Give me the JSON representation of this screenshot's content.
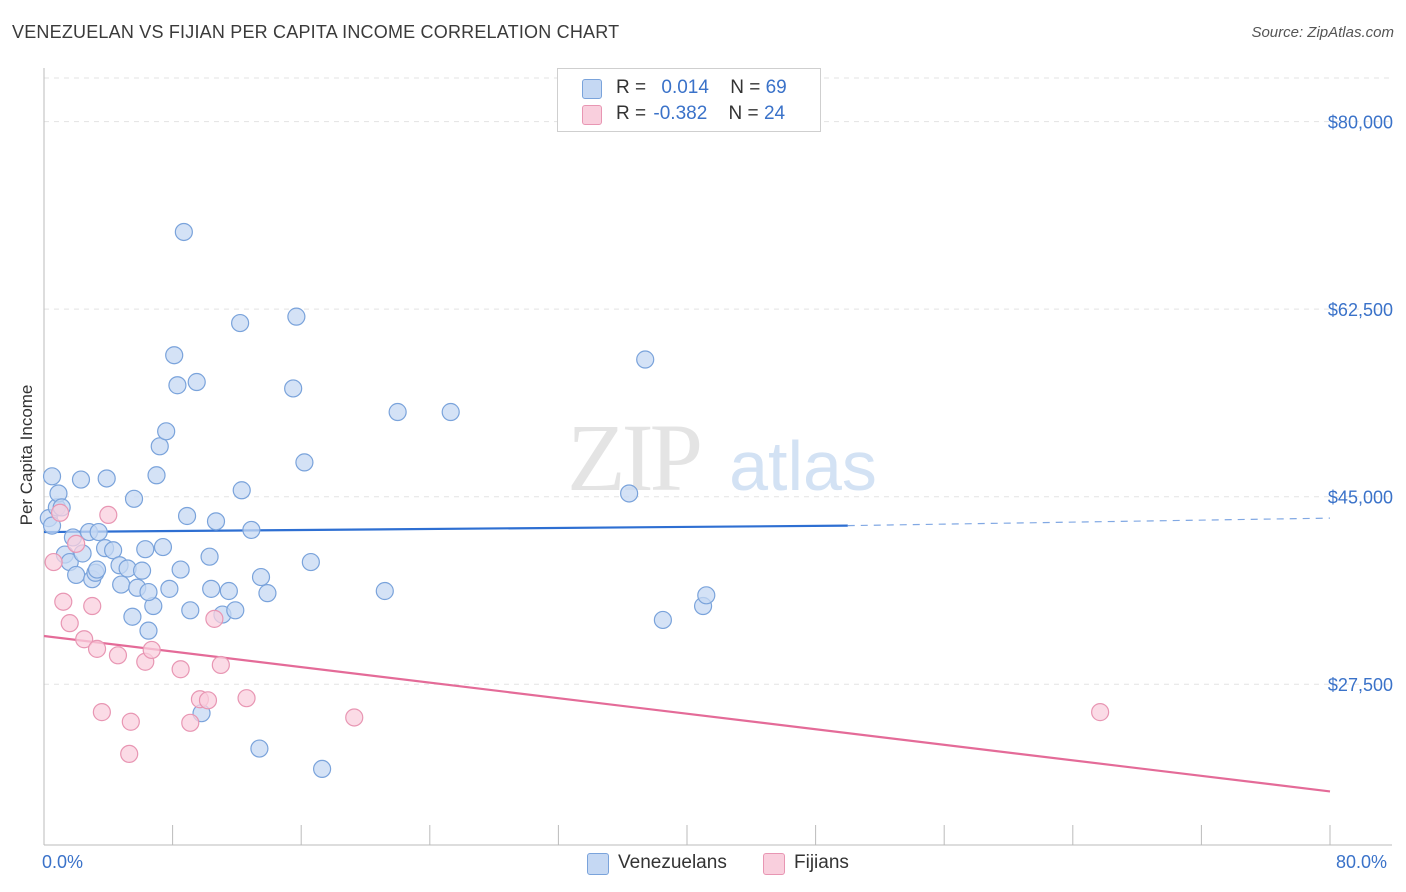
{
  "title": "VENEZUELAN VS FIJIAN PER CAPITA INCOME CORRELATION CHART",
  "source": "Source: ZipAtlas.com",
  "watermark": {
    "zip": "ZIP",
    "atlas": "atlas"
  },
  "legend": {
    "r_label": "R =",
    "n_label": "N =",
    "venezuelans": {
      "r": "0.014",
      "n": "69"
    },
    "fijians": {
      "r": "-0.382",
      "n": "24"
    }
  },
  "x_axis": {
    "min_label": "0.0%",
    "max_label": "80.0%"
  },
  "colors": {
    "venezuelans_fill": "#c5d8f3",
    "venezuelans_stroke": "#7aa3db",
    "venezuelans_line": "#2e6fd2",
    "fijians_fill": "#f9cfdd",
    "fijians_stroke": "#e896b3",
    "fijians_line": "#e46b98",
    "axis_label": "#3a72c9",
    "grid": "#e3e3e3"
  },
  "chart_data": {
    "type": "scatter",
    "title": "VENEZUELAN VS FIJIAN PER CAPITA INCOME CORRELATION CHART",
    "xlabel": "",
    "ylabel": "Per Capita Income",
    "xlim": [
      0,
      80
    ],
    "ylim": [
      12500,
      85000
    ],
    "x_tick_labels": [
      "0.0%",
      "80.0%"
    ],
    "y_ticks": [
      27500,
      45000,
      62500,
      80000
    ],
    "y_tick_labels": [
      "$27,500",
      "$45,000",
      "$62,500",
      "$80,000"
    ],
    "legend_position": "bottom-center",
    "series": [
      {
        "name": "Venezuelans",
        "r": 0.014,
        "n": 69,
        "trend": {
          "x": [
            0,
            50
          ],
          "y": [
            41700,
            42300
          ],
          "dashed_to": [
            80,
            43000
          ]
        },
        "points": [
          [
            0.3,
            43000
          ],
          [
            0.5,
            42300
          ],
          [
            0.5,
            46900
          ],
          [
            0.8,
            44000
          ],
          [
            0.9,
            45300
          ],
          [
            1.1,
            44000
          ],
          [
            1.3,
            39600
          ],
          [
            1.6,
            38900
          ],
          [
            1.8,
            41200
          ],
          [
            2.0,
            37700
          ],
          [
            2.4,
            39700
          ],
          [
            2.3,
            46600
          ],
          [
            2.8,
            41700
          ],
          [
            3.0,
            37300
          ],
          [
            3.2,
            37900
          ],
          [
            3.4,
            41700
          ],
          [
            3.8,
            40200
          ],
          [
            3.9,
            46700
          ],
          [
            4.3,
            40000
          ],
          [
            4.7,
            38600
          ],
          [
            4.8,
            36800
          ],
          [
            5.2,
            38300
          ],
          [
            5.5,
            33800
          ],
          [
            5.6,
            44800
          ],
          [
            5.8,
            36500
          ],
          [
            6.1,
            38100
          ],
          [
            6.3,
            40100
          ],
          [
            6.5,
            32500
          ],
          [
            6.8,
            34800
          ],
          [
            7.0,
            47000
          ],
          [
            7.2,
            49700
          ],
          [
            7.4,
            40300
          ],
          [
            7.6,
            51100
          ],
          [
            7.8,
            36400
          ],
          [
            8.1,
            58200
          ],
          [
            8.3,
            55400
          ],
          [
            8.5,
            38200
          ],
          [
            8.7,
            69700
          ],
          [
            8.9,
            43200
          ],
          [
            9.1,
            34400
          ],
          [
            9.5,
            55700
          ],
          [
            10.3,
            39400
          ],
          [
            10.4,
            36400
          ],
          [
            10.7,
            42700
          ],
          [
            11.1,
            34000
          ],
          [
            11.5,
            36200
          ],
          [
            11.9,
            34400
          ],
          [
            12.2,
            61200
          ],
          [
            12.3,
            45600
          ],
          [
            12.9,
            41900
          ],
          [
            13.5,
            37500
          ],
          [
            13.9,
            36000
          ],
          [
            15.5,
            55100
          ],
          [
            15.7,
            61800
          ],
          [
            16.2,
            48200
          ],
          [
            16.6,
            38900
          ],
          [
            17.3,
            19600
          ],
          [
            21.2,
            36200
          ],
          [
            22.0,
            52900
          ],
          [
            25.3,
            52900
          ],
          [
            36.4,
            45300
          ],
          [
            37.4,
            57800
          ],
          [
            38.5,
            33500
          ],
          [
            41.0,
            34800
          ],
          [
            41.2,
            35800
          ],
          [
            9.8,
            24800
          ],
          [
            13.4,
            21500
          ],
          [
            6.5,
            36100
          ],
          [
            3.3,
            38200
          ]
        ]
      },
      {
        "name": "Fijians",
        "r": -0.382,
        "n": 24,
        "trend": {
          "x": [
            0,
            80
          ],
          "y": [
            32000,
            17500
          ]
        },
        "points": [
          [
            0.6,
            38900
          ],
          [
            1.2,
            35200
          ],
          [
            1.6,
            33200
          ],
          [
            2.5,
            31700
          ],
          [
            3.0,
            34800
          ],
          [
            3.3,
            30800
          ],
          [
            3.6,
            24900
          ],
          [
            4.0,
            43300
          ],
          [
            4.6,
            30200
          ],
          [
            5.4,
            24000
          ],
          [
            5.3,
            21000
          ],
          [
            6.3,
            29600
          ],
          [
            6.7,
            30700
          ],
          [
            8.5,
            28900
          ],
          [
            9.1,
            23900
          ],
          [
            9.7,
            26100
          ],
          [
            10.2,
            26000
          ],
          [
            10.6,
            33600
          ],
          [
            11.0,
            29300
          ],
          [
            12.6,
            26200
          ],
          [
            19.3,
            24400
          ],
          [
            65.7,
            24900
          ],
          [
            2.0,
            40600
          ],
          [
            1.0,
            43500
          ]
        ]
      }
    ]
  }
}
